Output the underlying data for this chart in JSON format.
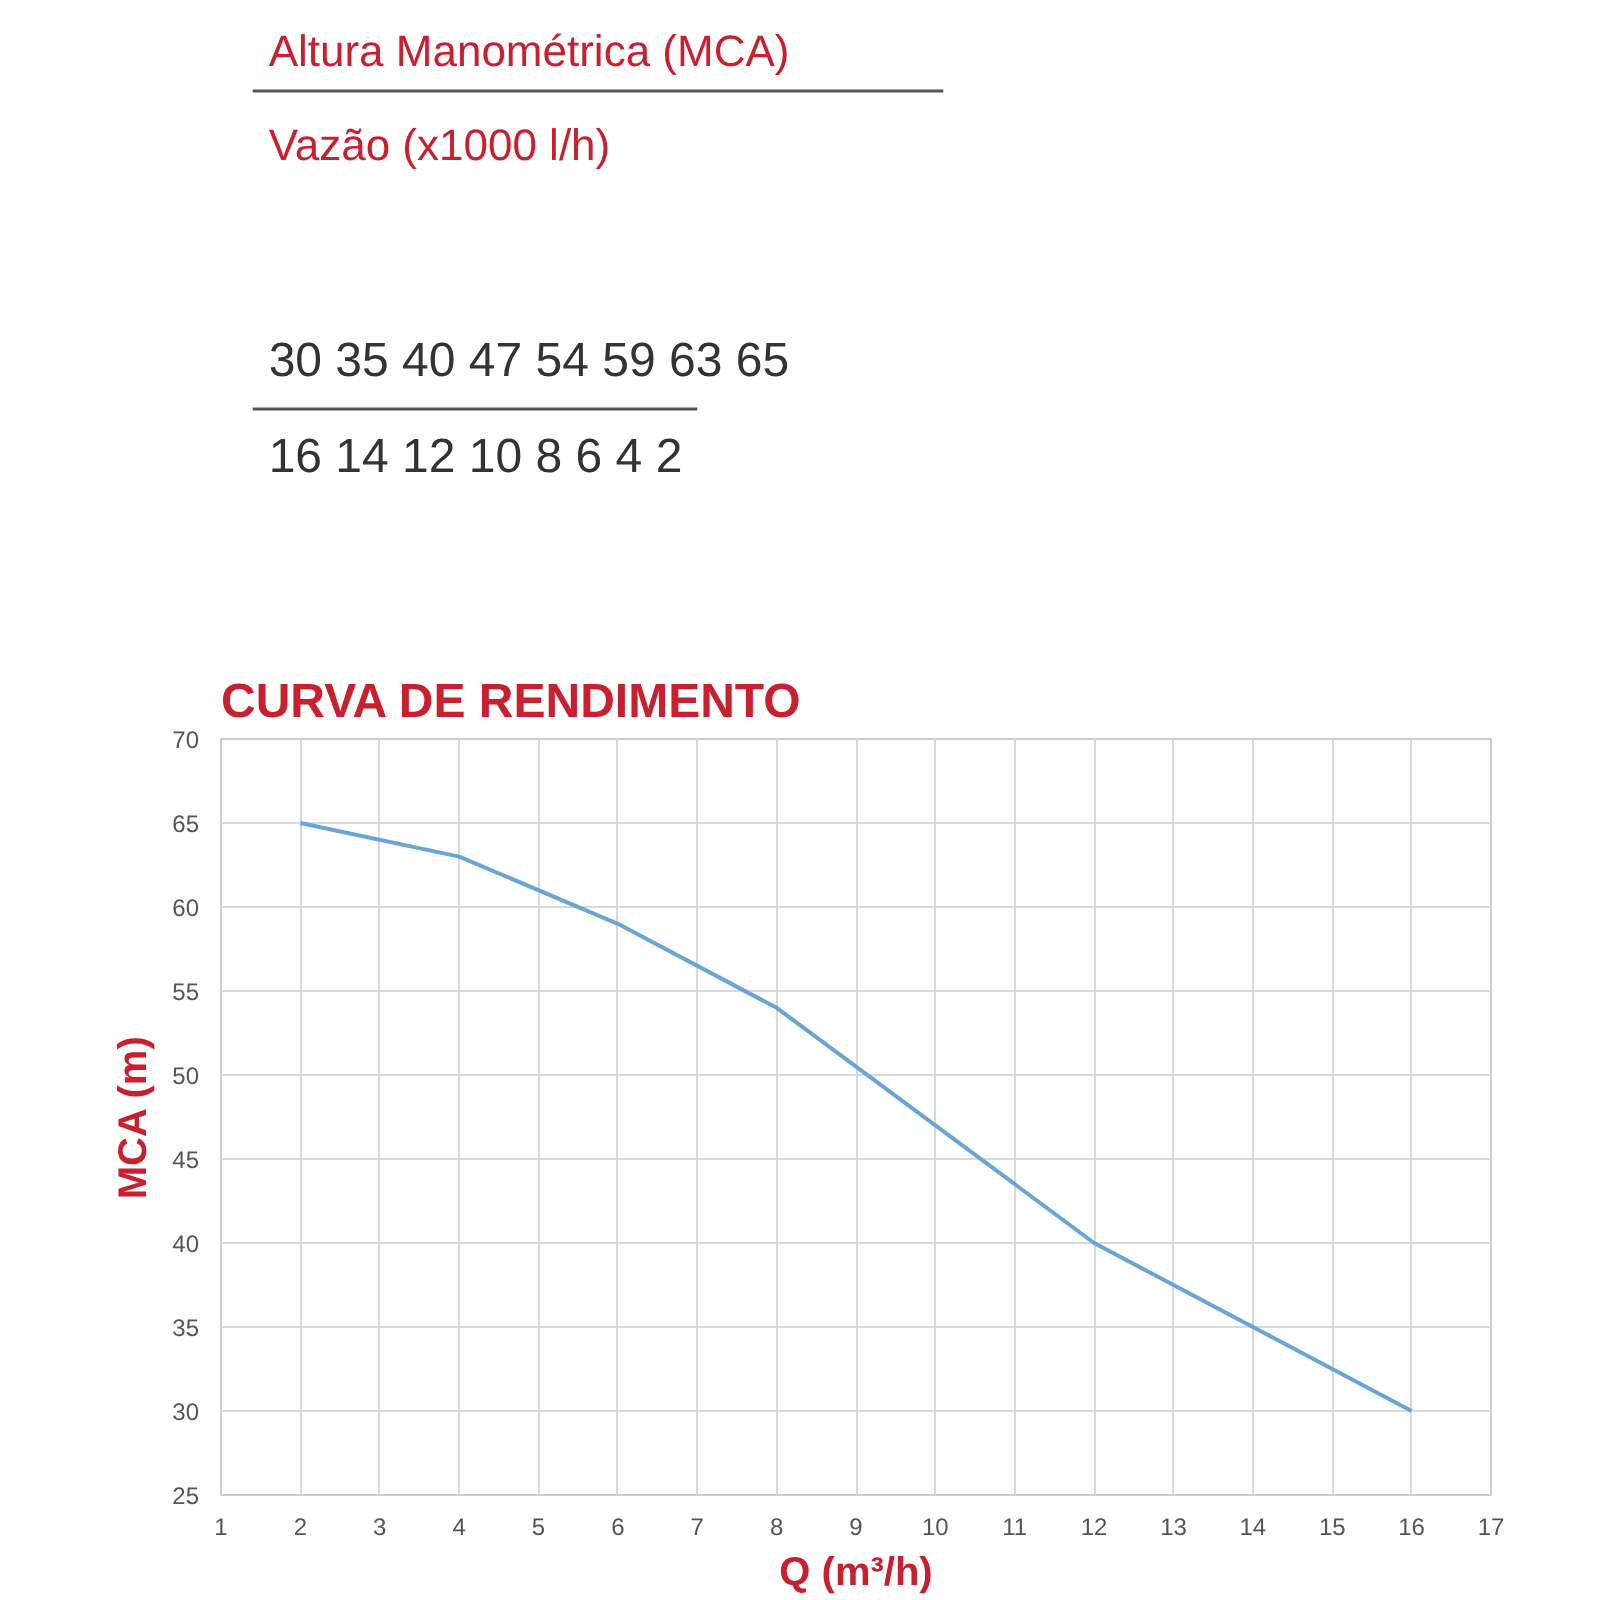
{
  "chart_data": [
    {
      "type": "other",
      "annotations": [
        "Altura Manométrica (MCA)",
        "Vazão (x1000 l/h)",
        "30 35 40 47 54 59 63 65",
        "16 14 12 10 8 6 4 2"
      ]
    },
    {
      "type": "line",
      "title": "CURVA DE RENDIMENTO",
      "xlabel": "Q (m³/h)",
      "ylabel": "MCA (m)",
      "x": [
        2,
        4,
        6,
        8,
        10,
        12,
        14,
        16
      ],
      "values": [
        65,
        63,
        59,
        54,
        47,
        40,
        35,
        30
      ],
      "color": "#6aa5d8",
      "grid": true,
      "xlim": [
        1,
        17
      ],
      "xticks": [
        1,
        2,
        3,
        4,
        5,
        6,
        7,
        8,
        9,
        10,
        11,
        12,
        13,
        14,
        15,
        16,
        17
      ],
      "ylim": [
        25,
        70
      ],
      "yticks": [
        25,
        30,
        35,
        40,
        45,
        50,
        55,
        60,
        65,
        70
      ]
    }
  ]
}
